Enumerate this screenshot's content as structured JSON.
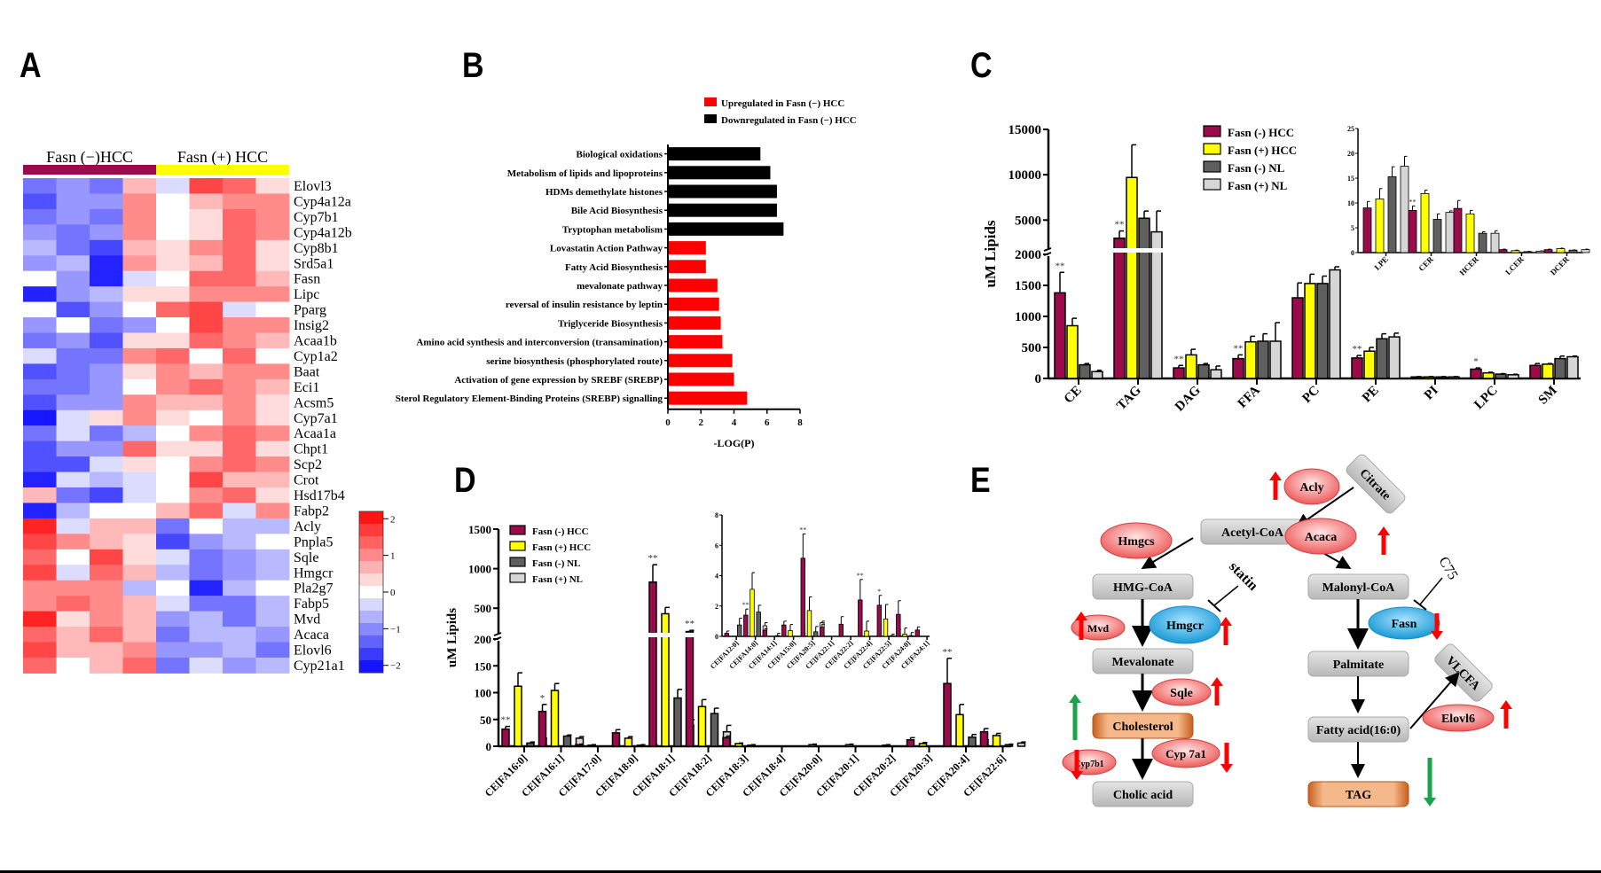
{
  "panels": {
    "A": "A",
    "B": "B",
    "C": "C",
    "D": "D",
    "E": "E"
  },
  "colors": {
    "fasn_neg_hcc": "#9b0a4b",
    "fasn_pos_hcc": "#ffff00",
    "fasn_neg_nl": "#5f5f5f",
    "fasn_pos_nl": "#d6d6d6",
    "up": "#ff0000",
    "down": "#000000",
    "enzyme_red": "#f07070",
    "enzyme_blue": "#1aa8e6",
    "metabolite_gray": "#c8c8c8",
    "metabolite_orange": "#d9793a",
    "arrow_green": "#1aa34a"
  },
  "chart_data": [
    {
      "id": "A",
      "type": "heatmap",
      "title": "",
      "group_labels": [
        "Fasn (−)HCC",
        "Fasn (+) HCC"
      ],
      "columns_per_group": 4,
      "rows": [
        "Elovl3",
        "Cyp4a12a",
        "Cyp7b1",
        "Cyp4a12b",
        "Cyp8b1",
        "Srd5a1",
        "Fasn",
        "Lipc",
        "Pparg",
        "Insig2",
        "Acaa1b",
        "Cyp1a2",
        "Baat",
        "Eci1",
        "Acsm5",
        "Cyp7a1",
        "Acaa1a",
        "Chpt1",
        "Scp2",
        "Crot",
        "Hsd17b4",
        "Fabp2",
        "Acly",
        "Pnpla5",
        "Sqle",
        "Hmgcr",
        "Pla2g7",
        "Fabp5",
        "Mvd",
        "Acaca",
        "Elovl6",
        "Cyp21a1"
      ],
      "values": [
        [
          -1.2,
          -0.9,
          -1.2,
          0.6,
          -0.3,
          1.6,
          1.3,
          0.3
        ],
        [
          -1.5,
          -0.9,
          -0.9,
          1.0,
          0,
          0.6,
          1.0,
          1.0
        ],
        [
          -1.2,
          -0.9,
          -1.2,
          1.0,
          0,
          0.3,
          1.3,
          1.0
        ],
        [
          -0.9,
          -1.2,
          -0.9,
          1.0,
          0,
          0.3,
          1.3,
          1.0
        ],
        [
          -0.6,
          -1.2,
          -1.6,
          0.6,
          0.3,
          1.0,
          1.3,
          0.3
        ],
        [
          -0.9,
          -0.6,
          -1.9,
          0.9,
          0.3,
          0.6,
          1.3,
          0.3
        ],
        [
          0,
          -0.9,
          -1.9,
          -0.3,
          0,
          1.3,
          1.3,
          0.6
        ],
        [
          -1.9,
          -0.9,
          -0.6,
          0.3,
          0.3,
          1.0,
          1.0,
          1.0
        ],
        [
          0,
          -1.5,
          -0.9,
          0,
          1.3,
          1.6,
          -0.3,
          0
        ],
        [
          -0.9,
          0,
          -1.2,
          -0.9,
          0,
          1.6,
          1.0,
          1.0
        ],
        [
          -1.2,
          -0.9,
          -1.5,
          0.3,
          0.3,
          1.3,
          1.0,
          0.6
        ],
        [
          -0.3,
          -1.2,
          -1.2,
          1.0,
          1.3,
          0,
          1.3,
          0
        ],
        [
          -1.5,
          -1.2,
          -0.9,
          0.3,
          1.0,
          0.6,
          1.0,
          1.0
        ],
        [
          -1.2,
          -1.2,
          -0.9,
          0,
          1.0,
          1.3,
          1.0,
          0.6
        ],
        [
          -1.5,
          -0.9,
          -0.9,
          1.0,
          0.6,
          0.6,
          1.0,
          0.3
        ],
        [
          -2.0,
          -0.3,
          0.3,
          1.0,
          0.3,
          0,
          1.0,
          0.3
        ],
        [
          -1.2,
          -0.3,
          -1.2,
          -0.6,
          0,
          1.0,
          1.3,
          1.0
        ],
        [
          -1.5,
          -0.9,
          -0.9,
          1.3,
          0.3,
          0.3,
          1.3,
          0.3
        ],
        [
          -1.5,
          -1.5,
          -0.3,
          0.3,
          0,
          1.0,
          1.3,
          1.0
        ],
        [
          -1.9,
          -0.3,
          -0.6,
          -0.3,
          0,
          1.6,
          0.6,
          0.6
        ],
        [
          0.6,
          -1.2,
          -1.6,
          -0.3,
          0,
          1.0,
          1.3,
          0.3
        ],
        [
          -1.9,
          -0.6,
          0,
          0,
          0.6,
          1.3,
          -0.3,
          1.0
        ],
        [
          1.9,
          -0.3,
          0.6,
          0.6,
          -1.2,
          0,
          -0.6,
          -0.6
        ],
        [
          1.6,
          1.0,
          0.6,
          0.3,
          -1.6,
          -0.9,
          -0.6,
          0
        ],
        [
          1.3,
          0,
          1.6,
          0.3,
          -0.3,
          -1.2,
          -0.9,
          -0.6
        ],
        [
          1.6,
          -0.3,
          1.3,
          0.6,
          -0.6,
          -1.2,
          -0.9,
          -0.6
        ],
        [
          1.0,
          1.0,
          1.0,
          -0.6,
          0,
          -1.9,
          -0.6,
          0
        ],
        [
          1.0,
          1.3,
          1.0,
          0.6,
          -0.3,
          -1.2,
          -1.2,
          -0.6
        ],
        [
          1.9,
          0.3,
          1.0,
          0.6,
          -0.9,
          -0.6,
          -1.2,
          -0.6
        ],
        [
          1.3,
          0.6,
          1.3,
          0.6,
          -1.2,
          -0.6,
          -0.6,
          -0.9
        ],
        [
          1.6,
          0.6,
          0.6,
          1.0,
          -0.9,
          -0.9,
          -0.6,
          -1.2
        ],
        [
          1.3,
          0,
          0.6,
          1.3,
          -1.2,
          -0.3,
          -0.9,
          -0.6
        ]
      ],
      "colorbar": {
        "ticks": [
          2,
          1,
          0,
          -1,
          -2
        ],
        "tick_labels": [
          "2",
          "1",
          "0",
          "−1",
          "−2"
        ],
        "range": [
          -2.2,
          2.2
        ]
      }
    },
    {
      "id": "B",
      "type": "bar",
      "orientation": "horizontal",
      "xlabel": "-LOG(P)",
      "xlim": [
        0,
        8
      ],
      "xticks": [
        0,
        2,
        4,
        6,
        8
      ],
      "legend": [
        {
          "name": "Upregulated in Fasn (−) HCC",
          "color": "#ff0000"
        },
        {
          "name": "Downregulated in Fasn (−) HCC",
          "color": "#000000"
        }
      ],
      "legend_position": "top-right",
      "categories": [
        "Biological oxidations",
        "Metabolism of lipids and lipoproteins",
        "HDMs demethylate histones",
        "Bile Acid Biosynthesis",
        "Tryptophan metabolism",
        "Lovastatin Action Pathway",
        "Fatty Acid Biosynthesis",
        "mevalonate pathway",
        "reversal of insulin resistance by leptin",
        "Triglyceride Biosynthesis",
        "Amino acid synthesis and interconversion (transamination)",
        "serine biosynthesis (phosphorylated route)",
        "Activation of gene expression by SREBF (SREBP)",
        "Sterol Regulatory Element-Binding Proteins (SREBP) signalling"
      ],
      "values": [
        5.6,
        6.2,
        6.6,
        6.6,
        7.0,
        2.3,
        2.3,
        3.0,
        3.1,
        3.2,
        3.3,
        3.9,
        4.0,
        4.8
      ],
      "direction": [
        "down",
        "down",
        "down",
        "down",
        "down",
        "up",
        "up",
        "up",
        "up",
        "up",
        "up",
        "up",
        "up",
        "up"
      ]
    },
    {
      "id": "C",
      "type": "bar",
      "ylabel": "uM Lipids",
      "yaxis_break": {
        "lower": [
          0,
          2000
        ],
        "upper": [
          2000,
          15000
        ]
      },
      "yticks_lower": [
        0,
        500,
        1000,
        1500,
        2000
      ],
      "yticks_upper": [
        5000,
        10000,
        15000
      ],
      "series_names": [
        "Fasn (-) HCC",
        "Fasn (+) HCC",
        "Fasn (-) NL",
        "Fasn (+) NL"
      ],
      "legend_position": "top-center",
      "categories": [
        "CE",
        "TAG",
        "DAG",
        "FFA",
        "PC",
        "PE",
        "PI",
        "LPC",
        "SM"
      ],
      "series": [
        {
          "name": "Fasn (-) HCC",
          "values": [
            1380,
            3000,
            170,
            320,
            1300,
            330,
            25,
            150,
            210
          ],
          "err": [
            330,
            800,
            40,
            60,
            240,
            40,
            5,
            20,
            30
          ]
        },
        {
          "name": "Fasn (+) HCC",
          "values": [
            850,
            9700,
            380,
            590,
            1530,
            440,
            25,
            90,
            230
          ],
          "err": [
            120,
            3600,
            90,
            90,
            150,
            60,
            5,
            10,
            10
          ]
        },
        {
          "name": "Fasn (-) NL",
          "values": [
            220,
            5200,
            220,
            600,
            1530,
            640,
            25,
            70,
            320
          ],
          "err": [
            20,
            800,
            20,
            120,
            120,
            80,
            5,
            8,
            40
          ]
        },
        {
          "name": "Fasn (+) NL",
          "values": [
            110,
            3700,
            140,
            600,
            1750,
            670,
            25,
            60,
            350
          ],
          "err": [
            20,
            2300,
            60,
            300,
            50,
            60,
            5,
            8,
            10
          ]
        }
      ],
      "significance": [
        "**",
        "**",
        "**",
        "**",
        "",
        "**",
        "",
        "*",
        ""
      ],
      "inset": {
        "ylim": [
          0,
          25
        ],
        "yticks": [
          0,
          5,
          10,
          15,
          20,
          25
        ],
        "categories": [
          "LPE",
          "CER",
          "HCER",
          "LCER",
          "DCER"
        ],
        "series": [
          {
            "name": "Fasn (-) HCC",
            "values": [
              9,
              8.5,
              8.9,
              0.6,
              0.6
            ],
            "err": [
              1.3,
              0.9,
              1.6,
              0.1,
              0.1
            ]
          },
          {
            "name": "Fasn (+) HCC",
            "values": [
              10.8,
              11.9,
              7.8,
              0.4,
              0.8
            ],
            "err": [
              2.1,
              0.7,
              0.7,
              0.1,
              0.1
            ]
          },
          {
            "name": "Fasn (-) NL",
            "values": [
              15.3,
              6.7,
              3.9,
              0.2,
              0.5
            ],
            "err": [
              2.0,
              1.1,
              0.3,
              0.05,
              0.05
            ]
          },
          {
            "name": "Fasn (+) NL",
            "values": [
              17.4,
              8.1,
              3.9,
              0.3,
              0.6
            ],
            "err": [
              2.0,
              0.3,
              0.5,
              0.05,
              0.1
            ]
          }
        ],
        "significance": [
          "",
          "**",
          "",
          "",
          ""
        ]
      }
    },
    {
      "id": "D",
      "type": "bar",
      "ylabel": "uM Lipids",
      "yaxis_break": {
        "lower": [
          0,
          200
        ],
        "upper": [
          200,
          1500
        ]
      },
      "yticks_lower": [
        0,
        50,
        100,
        150,
        200
      ],
      "yticks_upper": [
        500,
        1000,
        1500
      ],
      "series_names": [
        "Fasn (-) HCC",
        "Fasn (+) HCC",
        "Fasn (-) NL",
        "Fasn (+) NL"
      ],
      "legend_position": "top-left",
      "categories": [
        "CE[FA16:0]",
        "CE[FA16:1]",
        "CE[FA17:0]",
        "CE[FA18:0]",
        "CE[FA18:1]",
        "CE[FA18:2]",
        "CE[FA18:3]",
        "CE[FA18:4]",
        "CE[FA20:0]",
        "CE[FA20:1]",
        "CE[FA20:2]",
        "CE[FA20:3]",
        "CE[FA20:4]",
        "CE[FA22:6]"
      ],
      "series": [
        {
          "name": "Fasn (-) HCC",
          "values": [
            32,
            65,
            3,
            25,
            830,
            205,
            16,
            0,
            0,
            0,
            0,
            12,
            117,
            27
          ],
          "err": [
            5,
            13,
            1,
            6,
            220,
            15,
            3,
            0,
            0,
            0,
            0,
            4,
            47,
            6
          ]
        },
        {
          "name": "Fasn (+) HCC",
          "values": [
            112,
            104,
            2,
            15,
            430,
            74,
            5,
            0,
            3,
            3,
            2,
            5,
            59,
            20
          ],
          "err": [
            25,
            13,
            1,
            3,
            80,
            13,
            1,
            0,
            1,
            1,
            1,
            2,
            19,
            4
          ]
        },
        {
          "name": "Fasn (-) NL",
          "values": [
            6,
            19,
            0,
            2,
            90,
            61,
            2,
            0,
            0,
            0,
            0,
            0,
            17,
            3
          ],
          "err": [
            2,
            2,
            0,
            1,
            16,
            10,
            1,
            0,
            0,
            0,
            0,
            0,
            5,
            1
          ]
        },
        {
          "name": "Fasn (+) NL",
          "values": [
            12,
            15,
            0,
            2,
            40,
            27,
            0,
            0,
            0,
            0,
            0,
            0,
            9,
            6
          ],
          "err": [
            3,
            3,
            0,
            1,
            10,
            12,
            0,
            0,
            0,
            0,
            0,
            0,
            3,
            2
          ]
        }
      ],
      "significance": [
        "**",
        "*",
        "",
        "",
        "**",
        "**",
        "",
        "",
        "",
        "",
        "",
        "",
        "**",
        ""
      ],
      "inset": {
        "ylim": [
          0,
          8
        ],
        "yticks": [
          0,
          2,
          4,
          6,
          8
        ],
        "categories": [
          "CE[FA12:0]",
          "CE[FA14:0]",
          "CE[FA14:1]",
          "CE[FA15:0]",
          "CE[FA20:5]",
          "CE[FA22:1]",
          "CE[FA22:2]",
          "CE[FA22:4]",
          "CE[FA22:5]",
          "CE[FA24:0]",
          "CE[FA24:1]"
        ],
        "series": [
          {
            "name": "Fasn (-) HCC",
            "values": [
              0.2,
              1.4,
              0.4,
              0.75,
              5.15,
              0.6,
              0.8,
              2.4,
              2.05,
              1.45,
              0.42
            ],
            "err": [
              0.15,
              0.4,
              0.1,
              0.25,
              1.6,
              0.2,
              0.5,
              1.35,
              0.65,
              0.9,
              0.2
            ]
          },
          {
            "name": "Fasn (+) HCC",
            "values": [
              0,
              3.1,
              0,
              0.38,
              1.7,
              0,
              0,
              0.35,
              1.15,
              0.15,
              0
            ],
            "err": [
              0,
              1.1,
              0,
              0.4,
              0.9,
              0,
              0,
              0.65,
              0.95,
              0.4,
              0
            ]
          },
          {
            "name": "Fasn (-) NL",
            "values": [
              0.75,
              1.6,
              0.05,
              0,
              0.3,
              0,
              0,
              0,
              0.05,
              0.05,
              0
            ],
            "err": [
              0.45,
              0.45,
              0.15,
              0,
              0.35,
              0,
              0,
              0,
              0.1,
              0.2,
              0
            ]
          },
          {
            "name": "Fasn (+) NL",
            "values": [
              0,
              0.7,
              0,
              0.1,
              0.9,
              0,
              0,
              0,
              0.3,
              0,
              0
            ],
            "err": [
              0,
              0.2,
              0,
              0.1,
              0.1,
              0,
              0,
              0,
              0.15,
              0,
              0
            ]
          }
        ],
        "significance": [
          "",
          "**",
          "",
          "",
          "**",
          "",
          "",
          "**",
          "*",
          "",
          ""
        ]
      }
    }
  ],
  "pathway": {
    "metabolites": {
      "citrate": "Citrate",
      "acetyl_coa": "Acetyl-CoA",
      "hmg_coa": "HMG-CoA",
      "malonyl_coa": "Malonyl-CoA",
      "mevalonate": "Mevalonate",
      "palmitate": "Palmitate",
      "cholesterol": "Cholesterol",
      "fatty_acid": "Fatty acid(16:0)",
      "cholic_acid": "Cholic acid",
      "tag": "TAG",
      "vlcfa": "VLCFA"
    },
    "enzymes": {
      "acly": "Acly",
      "hmgcs": "Hmgcs",
      "acaca": "Acaca",
      "mvd": "Mvd",
      "hmgcr": "Hmgcr",
      "fasn": "Fasn",
      "sqle": "Sqle",
      "elovl6": "Elovl6",
      "cyp7b1": "Cyp7b1",
      "cyp7a1": "Cyp 7a1"
    },
    "inhibitors": {
      "statin": "statin",
      "c75": "C75"
    }
  }
}
